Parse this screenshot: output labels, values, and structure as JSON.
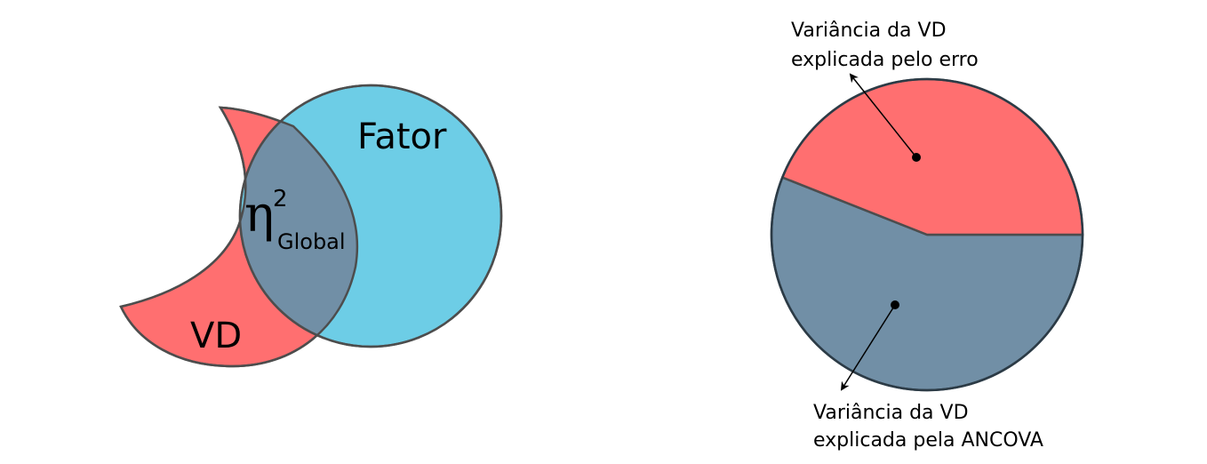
{
  "colors": {
    "dv_red": "#ff6f70",
    "factor_blue": "#6dcde6",
    "overlap_slate": "#718fa6",
    "outline": "#4d4d4d",
    "dark_outline": "#2c3b46",
    "text": "#000000"
  },
  "venn": {
    "dv_label": "VD",
    "factor_label": "Fator",
    "eta_symbol": "η",
    "eta_superscript": "2",
    "eta_subscript": "Global"
  },
  "pie": {
    "error_share": 0.44,
    "ancova_share": 0.56,
    "error_label_line1": "Variância da VD",
    "error_label_line2": "explicada pelo erro",
    "ancova_label_line1": "Variância da VD",
    "ancova_label_line2": "explicada pela ANCOVA"
  }
}
